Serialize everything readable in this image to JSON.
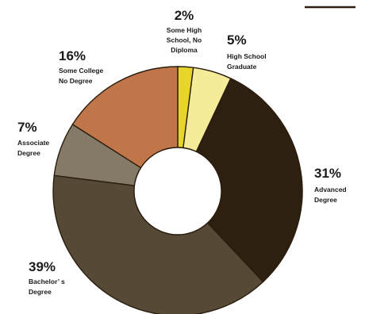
{
  "chart_data": {
    "type": "pie",
    "variant": "donut",
    "title": "",
    "slices": [
      {
        "percent_label": "2%",
        "value": 2,
        "label_lines": [
          "Some High",
          "School, No",
          "Diploma"
        ],
        "color": "#e8d52a"
      },
      {
        "percent_label": "5%",
        "value": 5,
        "label_lines": [
          "High School",
          "Graduate"
        ],
        "color": "#f5ec9a"
      },
      {
        "percent_label": "31%",
        "value": 31,
        "label_lines": [
          "Advanced",
          "Degree"
        ],
        "color": "#2e2010"
      },
      {
        "percent_label": "39%",
        "value": 39,
        "label_lines": [
          "Bachelor’ s",
          "Degree"
        ],
        "color": "#564a36"
      },
      {
        "percent_label": "7%",
        "value": 7,
        "label_lines": [
          "Associate",
          "Degree"
        ],
        "color": "#857a68"
      },
      {
        "percent_label": "16%",
        "value": 16,
        "label_lines": [
          "Some College",
          "No Degree"
        ],
        "color": "#c07648"
      }
    ],
    "legend": "none",
    "labels": "outside"
  },
  "decor": {
    "top_right_rule_color": "#2e2010"
  }
}
